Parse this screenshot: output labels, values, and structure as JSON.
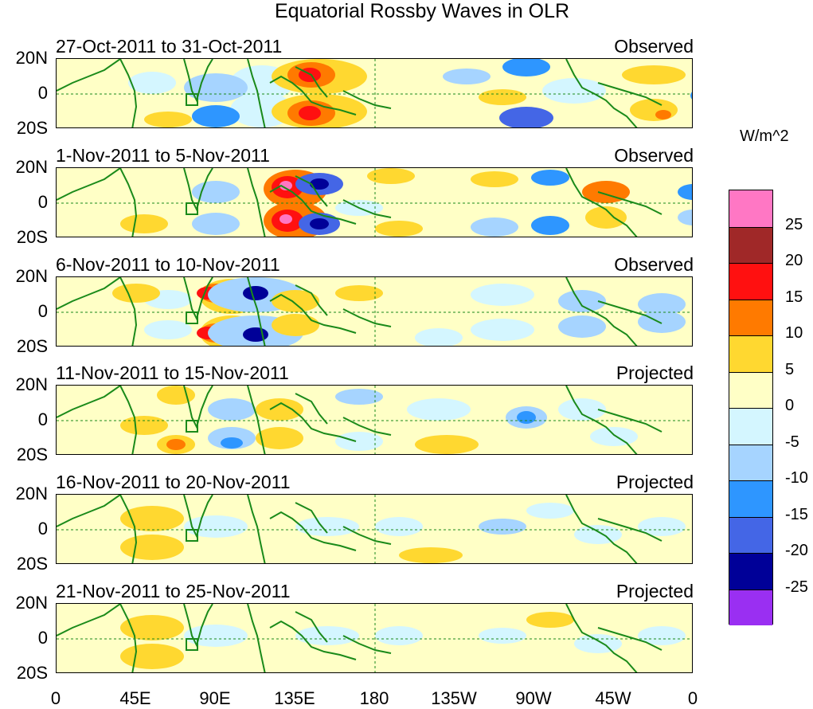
{
  "title": "Equatorial Rossby Waves in OLR",
  "units": "W/m^2",
  "panels": [
    {
      "dates": "27-Oct-2011 to 31-Oct-2011",
      "status": "Observed"
    },
    {
      "dates": "1-Nov-2011 to 5-Nov-2011",
      "status": "Observed"
    },
    {
      "dates": "6-Nov-2011 to 10-Nov-2011",
      "status": "Observed"
    },
    {
      "dates": "11-Nov-2011 to 15-Nov-2011",
      "status": "Projected"
    },
    {
      "dates": "16-Nov-2011 to 20-Nov-2011",
      "status": "Projected"
    },
    {
      "dates": "21-Nov-2011 to 25-Nov-2011",
      "status": "Projected"
    }
  ],
  "lat_labels": [
    "20N",
    "0",
    "20S"
  ],
  "lon_labels": [
    "0",
    "45E",
    "90E",
    "135E",
    "180",
    "135W",
    "90W",
    "45W",
    "0"
  ],
  "colorbar": {
    "levels": [
      "25",
      "20",
      "15",
      "10",
      "5",
      "0",
      "-5",
      "-10",
      "-15",
      "-20",
      "-25"
    ],
    "colors": [
      "#ff77c4",
      "#a02828",
      "#ff1010",
      "#ff7a00",
      "#ffd830",
      "#ffffc6",
      "#d4f6ff",
      "#a6d4ff",
      "#2e96ff",
      "#4466e6",
      "#000098",
      "#9a2ff2"
    ]
  },
  "palette": {
    "land": "#1a8a1a",
    "zero_line": "#1a8a1a"
  }
}
